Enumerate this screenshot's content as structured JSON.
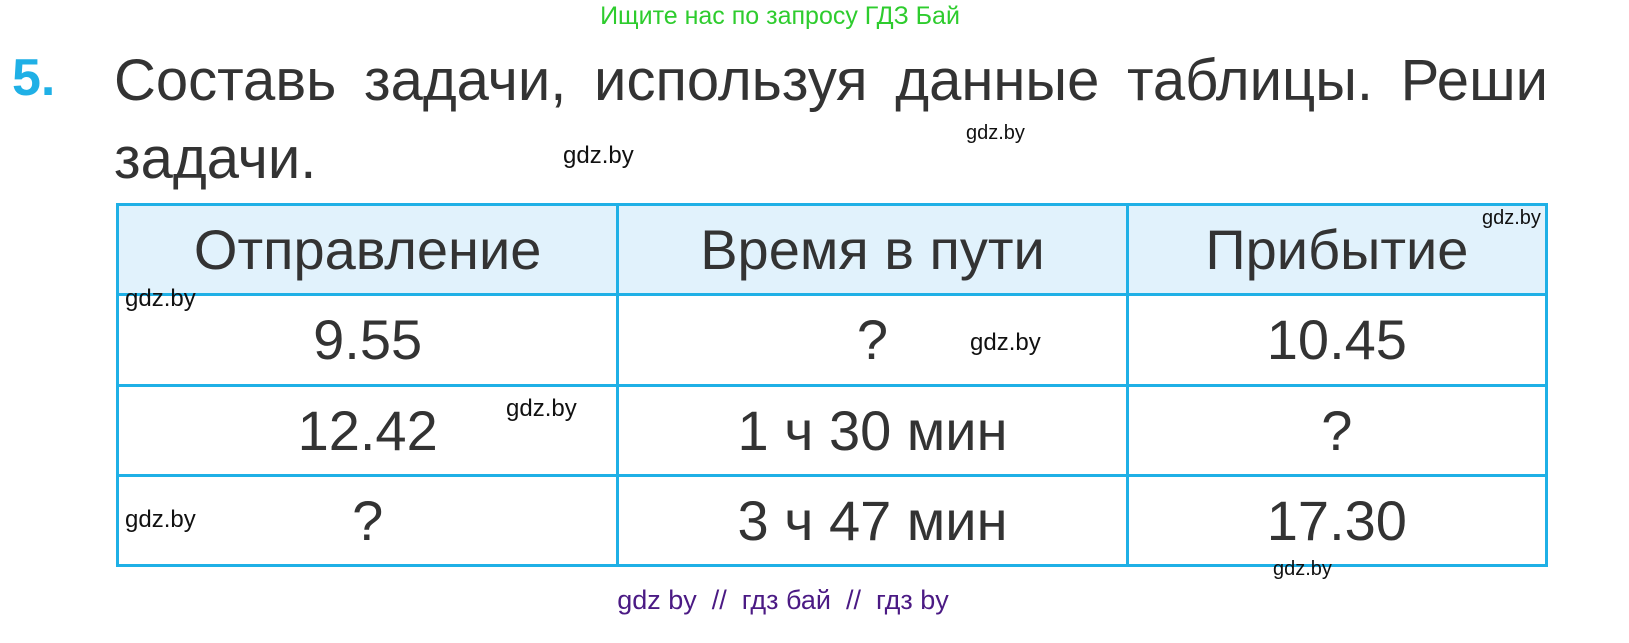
{
  "top_watermark": "Ищите нас по запросу ГДЗ Бай",
  "task": {
    "number": "5.",
    "text": "Составь задачи, используя данные таблицы. Реши задачи."
  },
  "table": {
    "headers": [
      "Отправление",
      "Время в пути",
      "Прибытие"
    ],
    "rows": [
      [
        "9.55",
        "?",
        "10.45"
      ],
      [
        "12.42",
        "1 ч 30 мин",
        "?"
      ],
      [
        "?",
        "3 ч 47 мин",
        "17.30"
      ]
    ]
  },
  "watermarks": [
    "gdz.by",
    "gdz.by",
    "gdz.by",
    "gdz.by",
    "gdz.by",
    "gdz.by",
    "gdz.by",
    "gdz.by"
  ],
  "footer": "gdz by  //  гдз бай  //  гдз by",
  "colors": {
    "accent": "#1fb0e6",
    "header_bg": "#e1f2fc",
    "top_watermark": "#2ecc2e",
    "footer": "#4b1a84"
  }
}
